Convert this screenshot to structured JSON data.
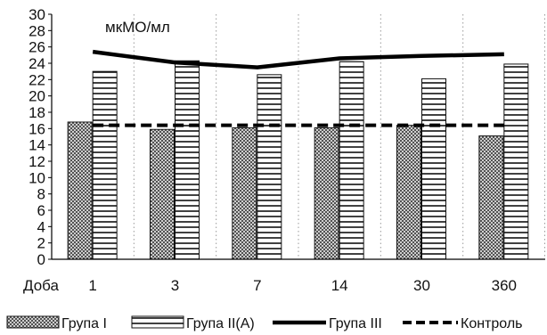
{
  "chart_data": {
    "type": "bar",
    "unit_label": "мкМО/мл",
    "xlabel": "Доба",
    "categories": [
      "1",
      "3",
      "7",
      "14",
      "30",
      "360"
    ],
    "ylim": [
      0,
      30
    ],
    "yticks": [
      0,
      2,
      4,
      6,
      8,
      10,
      12,
      14,
      16,
      18,
      20,
      22,
      24,
      26,
      28,
      30
    ],
    "grid": "vertical dotted lines between categories",
    "legend_position": "bottom",
    "series": [
      {
        "name": "Група I",
        "kind": "bar",
        "pattern": "crosshatch",
        "values": [
          16.8,
          15.9,
          16.1,
          16.1,
          16.4,
          15.1
        ]
      },
      {
        "name": "Група II(A)",
        "kind": "bar",
        "pattern": "horizontal-stripes",
        "values": [
          23.0,
          24.3,
          22.6,
          24.2,
          22.1,
          23.9
        ]
      },
      {
        "name": "Група III",
        "kind": "line",
        "style": "solid",
        "values": [
          25.4,
          24.1,
          23.5,
          24.6,
          24.9,
          25.1
        ]
      },
      {
        "name": "Контроль",
        "kind": "line",
        "style": "dashed",
        "values": [
          16.4,
          16.4,
          16.4,
          16.4,
          16.4,
          16.4
        ]
      }
    ]
  }
}
